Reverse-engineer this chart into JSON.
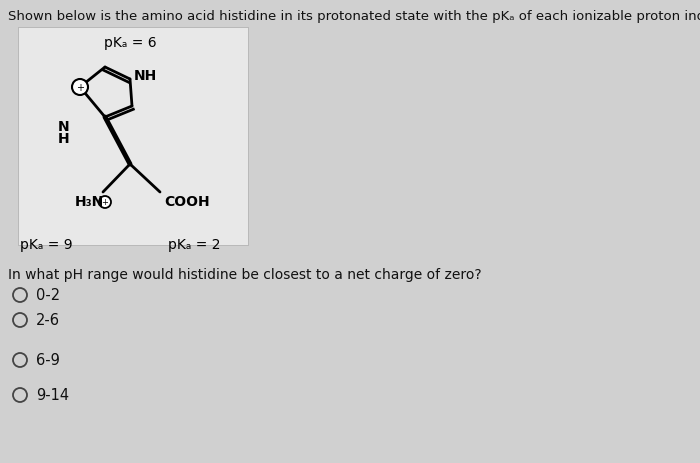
{
  "bg_color": "#d0d0d0",
  "molecule_bg_color": "#e8e8e8",
  "title_text": "Shown below is the amino acid histidine in its protonated state with the pKₐ of each ionizable proton indicated.",
  "pka_top": "pKₐ = 6",
  "pka_left": "pKₐ = 9",
  "pka_right": "pKₐ = 2",
  "question_text": "In what pH range would histidine be closest to a net charge of zero?",
  "options": [
    "0-2",
    "2-6",
    "6-9",
    "9-14"
  ],
  "title_fontsize": 9.5,
  "option_fontsize": 10.5,
  "question_fontsize": 10,
  "label_fontsize": 10,
  "pka_fontsize": 10,
  "text_color": "#111111"
}
